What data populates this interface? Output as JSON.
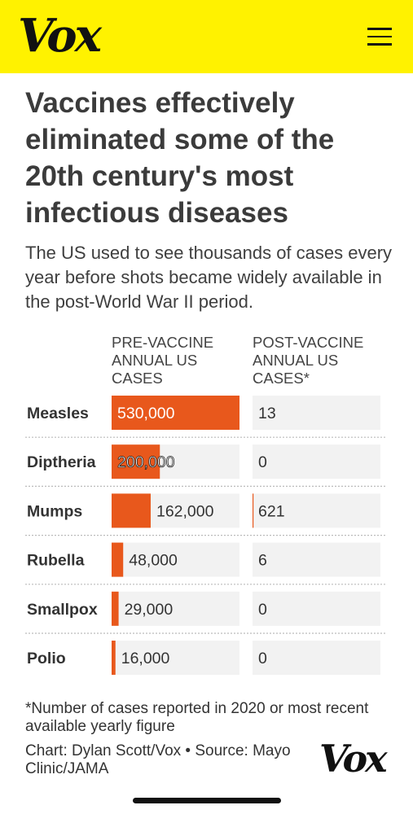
{
  "header": {
    "logo_text": "Vox",
    "menu_icon": "hamburger-menu-icon"
  },
  "colors": {
    "header_bg": "#fff200",
    "bar": "#e8581c",
    "track": "#f2f2f2",
    "divider": "#bbbbbb"
  },
  "article": {
    "headline": "Vaccines effectively eliminated some of the 20th century's most infectious diseases",
    "dek": "The US used to see thousands of cases every year before shots became widely available in the post-World War II period."
  },
  "chart_data": {
    "type": "bar",
    "categories": [
      "Measles",
      "Diptheria",
      "Mumps",
      "Rubella",
      "Smallpox",
      "Polio"
    ],
    "series": [
      {
        "name": "PRE-VACCINE ANNUAL US CASES",
        "values": [
          530000,
          200000,
          162000,
          48000,
          29000,
          16000
        ],
        "labels": [
          "530,000",
          "200,000",
          "162,000",
          "48,000",
          "29,000",
          "16,000"
        ]
      },
      {
        "name": "POST-VACCINE ANNUAL US CASES*",
        "values": [
          13,
          0,
          621,
          6,
          0,
          0
        ],
        "labels": [
          "13",
          "0",
          "621",
          "6",
          "0",
          "0"
        ]
      }
    ],
    "xlim": [
      0,
      530000
    ],
    "orientation": "horizontal"
  },
  "footer": {
    "footnote": "*Number of cases reported in 2020 or most recent available yearly figure",
    "credit": "Chart: Dylan Scott/Vox • Source: Mayo Clinic/JAMA",
    "logo_text": "Vox"
  }
}
